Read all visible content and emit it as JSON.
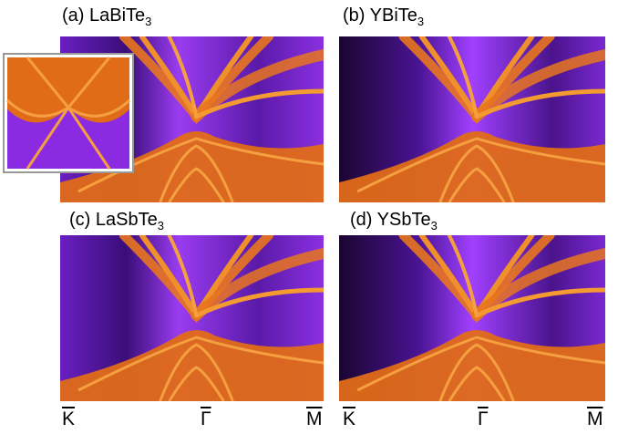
{
  "panels": [
    {
      "label": "(a) LaBiTe",
      "subscript": "3"
    },
    {
      "label": "(b) YBiTe",
      "subscript": "3"
    },
    {
      "label": "(c) LaSbTe",
      "subscript": "3"
    },
    {
      "label": "(d) YSbTe",
      "subscript": "3"
    }
  ],
  "x_axes": [
    {
      "labels": [
        "K",
        "Γ",
        "M"
      ]
    },
    {
      "labels": [
        "K",
        "Γ",
        "M"
      ]
    }
  ]
}
